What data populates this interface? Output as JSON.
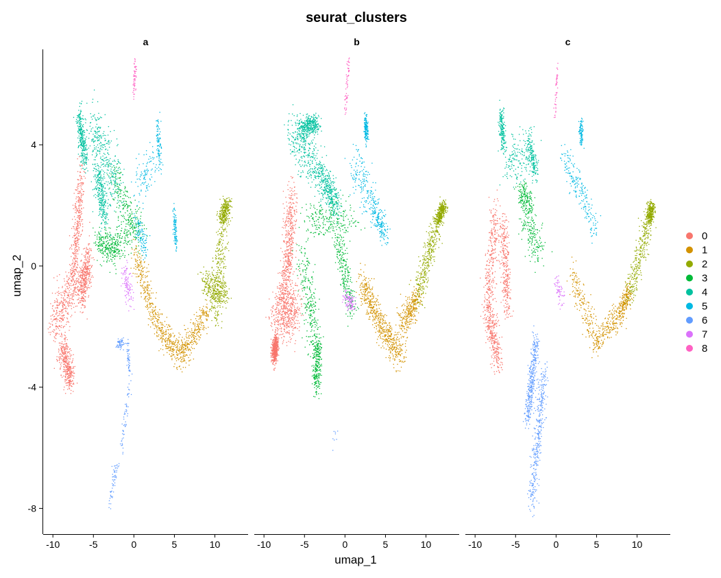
{
  "chart_data": {
    "type": "scatter",
    "title": "seurat_clusters",
    "xlabel": "umap_1",
    "ylabel": "umap_2",
    "xlim": [
      -11.2,
      14.1
    ],
    "ylim": [
      -8.85,
      7.15
    ],
    "x_ticks": [
      -10,
      -5,
      0,
      5,
      10
    ],
    "x_tick_labels": [
      "-10",
      "-5",
      "0",
      "5",
      "10"
    ],
    "y_ticks": [
      4,
      0,
      -4,
      -8
    ],
    "y_tick_labels": [
      "4",
      "0",
      "-4",
      "-8"
    ],
    "facets": [
      "a",
      "b",
      "c"
    ],
    "legend": {
      "position": "right",
      "entries": [
        {
          "label": "0",
          "color": "#F8766D"
        },
        {
          "label": "1",
          "color": "#D39200"
        },
        {
          "label": "2",
          "color": "#93AA00"
        },
        {
          "label": "3",
          "color": "#00BA38"
        },
        {
          "label": "4",
          "color": "#00C19F"
        },
        {
          "label": "5",
          "color": "#00B9E3"
        },
        {
          "label": "6",
          "color": "#619CFF"
        },
        {
          "label": "7",
          "color": "#DB72FB"
        },
        {
          "label": "8",
          "color": "#FF61C3"
        }
      ]
    },
    "clusters": {
      "a": [
        {
          "cluster": "0",
          "n": 1500,
          "segments": [
            [
              -10.0,
              -2.0,
              -7.0,
              -0.5,
              0.9,
              0.7
            ],
            [
              -8.8,
              -2.6,
              -7.8,
              -3.9,
              0.6,
              0.45
            ],
            [
              -7.5,
              -0.5,
              -6.5,
              2.9,
              0.5,
              0.7
            ],
            [
              -6.5,
              -1.0,
              -5.5,
              0.3,
              0.5,
              0.6
            ]
          ]
        },
        {
          "cluster": "1",
          "n": 800,
          "segments": [
            [
              0.0,
              0.5,
              3.0,
              -2.0,
              0.5,
              0.5
            ],
            [
              3.0,
              -2.0,
              6.0,
              -3.0,
              0.7,
              0.45
            ],
            [
              6.0,
              -3.0,
              9.0,
              -1.5,
              0.6,
              0.45
            ]
          ]
        },
        {
          "cluster": "2",
          "n": 800,
          "segments": [
            [
              10.0,
              -1.8,
              11.0,
              1.5,
              0.7,
              0.5
            ],
            [
              11.0,
              1.5,
              11.5,
              2.1,
              0.6,
              0.2
            ],
            [
              8.5,
              -0.5,
              11.5,
              -1.0,
              0.6,
              0.45
            ]
          ]
        },
        {
          "cluster": "3",
          "n": 600,
          "segments": [
            [
              -3.5,
              0.5,
              1.0,
              1.5,
              0.8,
              0.6
            ],
            [
              -2.5,
              3.0,
              0.5,
              1.0,
              0.7,
              0.6
            ],
            [
              -4.5,
              0.8,
              -2.0,
              0.5,
              0.5,
              0.4
            ]
          ]
        },
        {
          "cluster": "4",
          "n": 900,
          "segments": [
            [
              -6.8,
              5.0,
              -6.0,
              3.5,
              0.4,
              0.5
            ],
            [
              -5.0,
              4.7,
              -2.0,
              2.5,
              0.9,
              0.8
            ],
            [
              -4.5,
              3.2,
              -3.5,
              1.5,
              0.6,
              0.5
            ]
          ]
        },
        {
          "cluster": "5",
          "n": 400,
          "segments": [
            [
              0.5,
              2.5,
              2.5,
              3.5,
              0.8,
              0.6
            ],
            [
              3.0,
              4.8,
              3.2,
              3.3,
              0.3,
              0.3
            ],
            [
              0.3,
              1.5,
              1.5,
              0.5,
              0.5,
              0.4
            ],
            [
              5.0,
              1.7,
              5.2,
              0.7,
              0.2,
              0.3
            ]
          ]
        },
        {
          "cluster": "6",
          "n": 220,
          "segments": [
            [
              -3.0,
              -7.8,
              -2.0,
              -6.5,
              0.3,
              0.3
            ],
            [
              -1.5,
              -6.0,
              -0.5,
              -3.8,
              0.2,
              0.3
            ],
            [
              -0.5,
              -3.5,
              -0.8,
              -2.5,
              0.2,
              0.2
            ],
            [
              -2.0,
              -2.6,
              -1.4,
              -2.5,
              0.2,
              0.15
            ]
          ]
        },
        {
          "cluster": "7",
          "n": 100,
          "segments": [
            [
              -1.0,
              -0.2,
              -0.5,
              -1.2,
              0.5,
              0.4
            ]
          ]
        },
        {
          "cluster": "8",
          "n": 55,
          "segments": [
            [
              0.2,
              6.8,
              0.0,
              5.6,
              0.15,
              0.2
            ]
          ]
        }
      ],
      "b": [
        {
          "cluster": "0",
          "n": 1500,
          "segments": [
            [
              -8.5,
              -1.5,
              -6.0,
              -1.5,
              1.0,
              0.8
            ],
            [
              -7.5,
              -1.0,
              -6.5,
              2.3,
              0.7,
              0.8
            ],
            [
              -8.8,
              -3.0,
              -8.5,
              -2.5,
              0.3,
              0.3
            ]
          ]
        },
        {
          "cluster": "1",
          "n": 900,
          "segments": [
            [
              2.0,
              -0.5,
              4.5,
              -2.0,
              0.6,
              0.5
            ],
            [
              4.5,
              -2.0,
              7.0,
              -3.0,
              0.8,
              0.45
            ],
            [
              7.0,
              -2.0,
              9.0,
              -1.0,
              0.6,
              0.5
            ]
          ]
        },
        {
          "cluster": "2",
          "n": 700,
          "segments": [
            [
              9.0,
              -1.0,
              11.5,
              1.5,
              0.6,
              0.5
            ],
            [
              11.5,
              1.5,
              12.2,
              2.0,
              0.4,
              0.2
            ]
          ]
        },
        {
          "cluster": "3",
          "n": 1000,
          "segments": [
            [
              -5.5,
              0.5,
              -3.5,
              -2.5,
              0.8,
              0.8
            ],
            [
              -3.5,
              -2.5,
              -3.5,
              -4.0,
              0.5,
              0.4
            ],
            [
              -4.5,
              1.5,
              1.0,
              1.5,
              1.2,
              0.6
            ],
            [
              -1.0,
              1.0,
              1.0,
              -1.5,
              0.6,
              0.5
            ]
          ]
        },
        {
          "cluster": "4",
          "n": 1000,
          "segments": [
            [
              -6.5,
              4.5,
              -3.0,
              3.0,
              1.0,
              0.7
            ],
            [
              -5.5,
              4.5,
              -3.5,
              4.7,
              0.6,
              0.3
            ],
            [
              -3.0,
              3.0,
              -1.0,
              2.0,
              0.7,
              0.5
            ]
          ]
        },
        {
          "cluster": "5",
          "n": 500,
          "segments": [
            [
              1.0,
              3.5,
              3.5,
              2.0,
              0.8,
              0.7
            ],
            [
              3.5,
              2.0,
              5.0,
              1.0,
              0.5,
              0.4
            ],
            [
              2.5,
              4.8,
              2.7,
              4.3,
              0.2,
              0.3
            ]
          ]
        },
        {
          "cluster": "6",
          "n": 8,
          "segments": [
            [
              -1.5,
              -6.0,
              -1.0,
              -5.4,
              0.3,
              0.3
            ]
          ]
        },
        {
          "cluster": "7",
          "n": 100,
          "segments": [
            [
              0.0,
              -1.0,
              1.0,
              -1.3,
              0.4,
              0.3
            ]
          ]
        },
        {
          "cluster": "8",
          "n": 55,
          "segments": [
            [
              0.5,
              6.8,
              0.0,
              5.0,
              0.15,
              0.2
            ]
          ]
        }
      ],
      "c": [
        {
          "cluster": "0",
          "n": 900,
          "segments": [
            [
              -7.5,
              1.8,
              -8.5,
              -1.5,
              0.6,
              0.7
            ],
            [
              -8.5,
              -1.5,
              -7.0,
              -3.2,
              0.6,
              0.5
            ],
            [
              -6.5,
              1.5,
              -6.0,
              -1.5,
              0.5,
              0.5
            ]
          ]
        },
        {
          "cluster": "1",
          "n": 600,
          "segments": [
            [
              2.0,
              -0.2,
              5.0,
              -2.5,
              0.6,
              0.5
            ],
            [
              5.0,
              -2.5,
              8.0,
              -1.5,
              0.7,
              0.4
            ],
            [
              8.0,
              -1.5,
              9.0,
              -0.8,
              0.4,
              0.3
            ]
          ]
        },
        {
          "cluster": "2",
          "n": 600,
          "segments": [
            [
              9.0,
              -1.0,
              11.5,
              1.5,
              0.6,
              0.5
            ],
            [
              11.5,
              1.5,
              11.8,
              2.0,
              0.4,
              0.2
            ]
          ]
        },
        {
          "cluster": "3",
          "n": 350,
          "segments": [
            [
              -4.0,
              1.5,
              -2.0,
              0.5,
              0.8,
              0.6
            ],
            [
              -4.5,
              2.5,
              -3.0,
              2.0,
              0.5,
              0.4
            ]
          ]
        },
        {
          "cluster": "4",
          "n": 500,
          "segments": [
            [
              -6.5,
              3.5,
              -3.0,
              3.5,
              0.9,
              0.7
            ],
            [
              -6.8,
              5.0,
              -6.5,
              4.0,
              0.3,
              0.3
            ],
            [
              -3.5,
              4.3,
              -2.5,
              3.0,
              0.4,
              0.4
            ]
          ]
        },
        {
          "cluster": "5",
          "n": 300,
          "segments": [
            [
              1.0,
              3.7,
              3.0,
              2.5,
              0.6,
              0.5
            ],
            [
              3.0,
              2.5,
              5.0,
              1.0,
              0.5,
              0.4
            ],
            [
              3.0,
              4.6,
              3.2,
              4.1,
              0.2,
              0.3
            ]
          ]
        },
        {
          "cluster": "6",
          "n": 700,
          "segments": [
            [
              -3.0,
              -7.8,
              -1.5,
              -3.5,
              0.5,
              0.5
            ],
            [
              -3.5,
              -5.0,
              -2.5,
              -2.5,
              0.4,
              0.4
            ]
          ]
        },
        {
          "cluster": "7",
          "n": 60,
          "segments": [
            [
              0.0,
              -0.5,
              0.8,
              -1.2,
              0.3,
              0.3
            ]
          ]
        },
        {
          "cluster": "8",
          "n": 45,
          "segments": [
            [
              0.2,
              6.6,
              -0.2,
              4.9,
              0.12,
              0.2
            ]
          ]
        }
      ]
    }
  }
}
